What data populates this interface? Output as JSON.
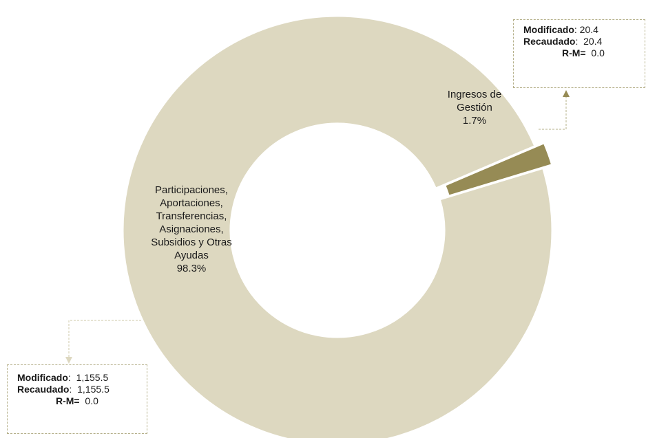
{
  "chart_data": {
    "type": "pie",
    "variant": "donut",
    "categories": [
      "Ingresos de Gestión",
      "Participaciones, Aportaciones, Transferencias, Asignaciones, Subsidios y Otras Ayudas"
    ],
    "values": [
      20.4,
      1155.5
    ],
    "percent_labels": [
      "1.7%",
      "98.3%"
    ],
    "colors": [
      "#968b55",
      "#ddd8c0"
    ],
    "exploded": [
      true,
      false
    ],
    "segment_labels": [
      [
        "Ingresos de",
        "Gestión",
        "1.7%"
      ],
      [
        "Participaciones,",
        "Aportaciones,",
        "Transferencias,",
        "Asignaciones,",
        "Subsidios y Otras",
        "Ayudas",
        "98.3%"
      ]
    ],
    "callouts": [
      {
        "segment": "Ingresos de Gestión",
        "modificado_label": "Modificado",
        "modificado_value": "20.4",
        "recaudado_label": "Recaudado",
        "recaudado_value": "20.4",
        "rm_label": "R-M=",
        "rm_value": "0.0"
      },
      {
        "segment": "Participaciones, Aportaciones, Transferencias, Asignaciones, Subsidios y Otras Ayudas",
        "modificado_label": "Modificado",
        "modificado_value": "1,155.5",
        "recaudado_label": "Recaudado",
        "recaudado_value": "1,155.5",
        "rm_label": "R-M=",
        "rm_value": "0.0"
      }
    ],
    "title": "",
    "legend": "none"
  }
}
